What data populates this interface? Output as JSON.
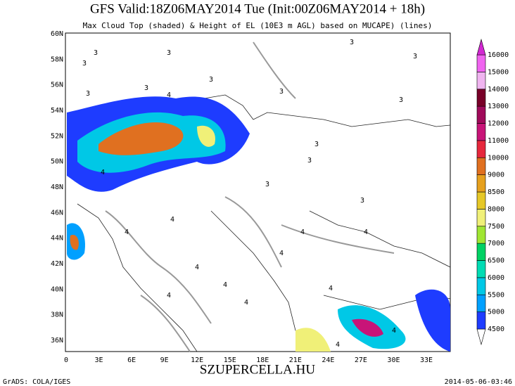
{
  "header": {
    "title": "GFS Valid:18Z06MAY2014 Tue (Init:00Z06MAY2014 + 18h)",
    "subtitle": "Max Cloud Top (shaded) & Height of EL (10E3 m AGL) based on MUCAPE) (lines)"
  },
  "map": {
    "lat_labels": [
      "60N",
      "58N",
      "56N",
      "54N",
      "52N",
      "50N",
      "48N",
      "46N",
      "44N",
      "42N",
      "40N",
      "38N",
      "36N"
    ],
    "lon_labels": [
      "0",
      "3E",
      "6E",
      "9E",
      "12E",
      "15E",
      "18E",
      "21E",
      "24E",
      "27E",
      "30E",
      "33E"
    ],
    "contour_labels": [
      3,
      3,
      3,
      3,
      3,
      3,
      3,
      3,
      3,
      3,
      3,
      3,
      3,
      3,
      4,
      4,
      4,
      4,
      4,
      4,
      4,
      4,
      4,
      4,
      4,
      4,
      4,
      4
    ]
  },
  "colorbar": {
    "levels": [
      4500,
      5000,
      5500,
      6000,
      6500,
      7000,
      7500,
      8000,
      8500,
      9000,
      10000,
      11000,
      12000,
      13000,
      14000,
      15000,
      16000
    ],
    "colors": [
      "#ffffff",
      "#1e3cff",
      "#00a0ff",
      "#00c8e6",
      "#00dcb4",
      "#00d264",
      "#a0e632",
      "#f0f078",
      "#e6c828",
      "#e6a01e",
      "#e07020",
      "#e6283c",
      "#c81478",
      "#a00a5a",
      "#780028",
      "#f0b4f0",
      "#f064f0",
      "#d228d2"
    ]
  },
  "footer": {
    "left": "GrADS: COLA/IGES",
    "center": "SZUPERCELLA.HU",
    "right": "2014-05-06-03:46"
  }
}
